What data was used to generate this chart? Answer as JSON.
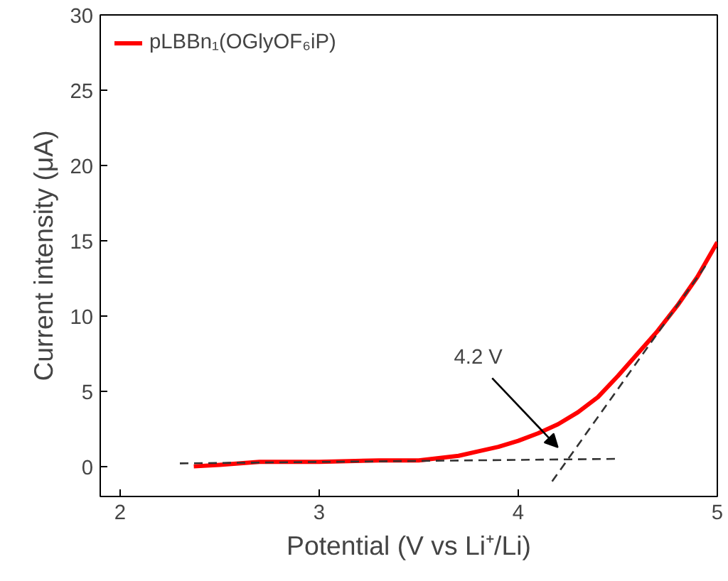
{
  "chart_data": {
    "type": "line",
    "xlabel": "Potential (V vs Li⁺/Li)",
    "ylabel": "Current intensity (μA)",
    "xlim": [
      1.9,
      5
    ],
    "ylim": [
      -2,
      30
    ],
    "xticks": [
      2,
      3,
      4,
      5
    ],
    "yticks": [
      0,
      5,
      10,
      15,
      20,
      25,
      30
    ],
    "grid": false,
    "legend": "top left",
    "series": [
      {
        "name": "pLBBn₁(OGlyOF₆iP)",
        "color": "#ff0000",
        "x": [
          2.37,
          2.5,
          2.7,
          3.0,
          3.3,
          3.5,
          3.7,
          3.8,
          3.9,
          4.0,
          4.1,
          4.2,
          4.3,
          4.4,
          4.5,
          4.6,
          4.7,
          4.8,
          4.9,
          5.0
        ],
        "values": [
          0.0,
          0.1,
          0.3,
          0.3,
          0.4,
          0.4,
          0.7,
          1.0,
          1.3,
          1.7,
          2.2,
          2.8,
          3.6,
          4.6,
          6.0,
          7.5,
          9.0,
          10.7,
          12.6,
          14.9
        ]
      },
      {
        "color": "#333333",
        "line_style": "dashed",
        "x": [
          2.3,
          4.5
        ],
        "values": [
          0.2,
          0.5
        ]
      },
      {
        "color": "#333333",
        "line_style": "dashed",
        "x": [
          4.17,
          4.95
        ],
        "values": [
          -1.0,
          13.5
        ]
      }
    ],
    "annotations": [
      "4.2 V"
    ]
  }
}
